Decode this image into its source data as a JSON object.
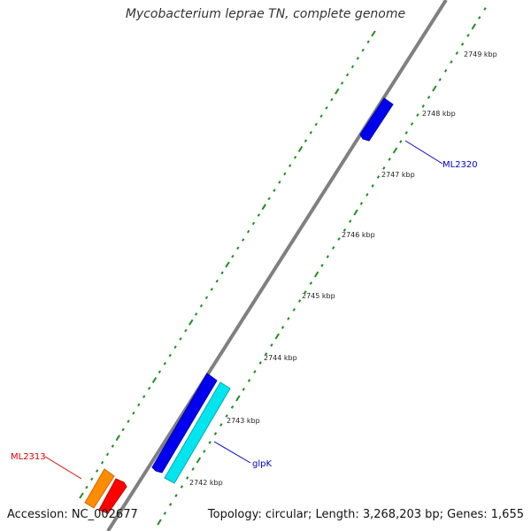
{
  "title": "Mycobacterium leprae TN, complete genome",
  "footer": {
    "accession": "Accession: NC_002677",
    "summary": "Topology: circular; Length: 3,268,203 bp; Genes: 1,655"
  },
  "colors": {
    "backbone": "#808080",
    "tick": "#228B22",
    "label": "#222222",
    "forward_gene": "#0000EE",
    "cyan_gene": "#00E5EE",
    "orange_gene": "#FF8C00",
    "red_gene": "#FF0000",
    "gene_label_blue": "#0000CC",
    "gene_label_red": "#DD0000"
  },
  "ticks": [
    {
      "label": "2742 kbp"
    },
    {
      "label": "2743 kbp"
    },
    {
      "label": "2744 kbp"
    },
    {
      "label": "2745 kbp"
    },
    {
      "label": "2746 kbp"
    },
    {
      "label": "2747 kbp"
    },
    {
      "label": "2748 kbp"
    },
    {
      "label": "2749 kbp"
    }
  ],
  "genes": [
    {
      "name": "ML2320",
      "color_key": "forward_gene",
      "label_color_key": "gene_label_blue"
    },
    {
      "name": "glpK",
      "color_key": "forward_gene",
      "label_color_key": "gene_label_blue"
    },
    {
      "name": "",
      "color_key": "cyan_gene",
      "label_color_key": ""
    },
    {
      "name": "ML2313",
      "color_key": "orange_gene",
      "label_color_key": "gene_label_red"
    },
    {
      "name": "",
      "color_key": "red_gene",
      "label_color_key": ""
    }
  ]
}
